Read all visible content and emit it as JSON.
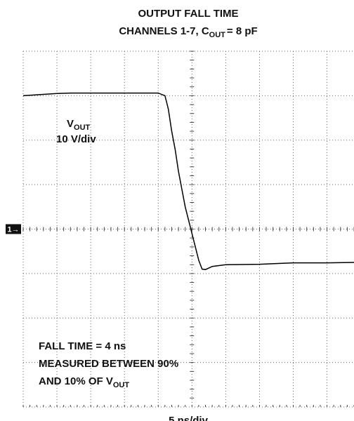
{
  "chart_data": {
    "type": "line",
    "title": "OUTPUT FALL TIME",
    "subtitle": {
      "text": "CHANNELS 1-7, C",
      "sub": "OUT",
      "tail": "= 8 pF"
    },
    "trace_label": {
      "text": "V",
      "sub": "OUT"
    },
    "scale_label": "10 V/div",
    "note_lines": [
      "FALL TIME = 4 ns",
      "MEASURED BETWEEN 90%"
    ],
    "note_last": {
      "text": "AND 10% OF V",
      "sub": "OUT"
    },
    "xlabel": "5 ns/div",
    "ground_marker": "1→",
    "x": [
      0,
      2,
      5,
      7,
      10,
      15,
      20,
      21,
      21.5,
      22,
      22.5,
      23,
      23.5,
      24,
      24.5,
      25,
      25.5,
      26,
      26.5,
      27,
      28,
      29,
      30,
      35,
      40,
      45,
      49
    ],
    "series": [
      {
        "name": "V_OUT",
        "color": "#000000",
        "values": [
          30.0,
          30.2,
          30.5,
          30.6,
          30.6,
          30.6,
          30.6,
          30.0,
          27,
          22,
          18,
          13,
          9,
          5,
          2,
          -1,
          -4,
          -7,
          -9,
          -9.1,
          -8.4,
          -8.2,
          -8.0,
          -7.9,
          -7.6,
          -7.6,
          -7.5
        ]
      }
    ],
    "xlim": [
      0,
      49
    ],
    "xticks": [
      0,
      5,
      10,
      15,
      20,
      25,
      30,
      35,
      40,
      45
    ],
    "ylim": [
      -40,
      40
    ],
    "yticks": [
      -40,
      -30,
      -20,
      -10,
      0,
      10,
      20,
      30,
      40
    ],
    "grid": true
  }
}
